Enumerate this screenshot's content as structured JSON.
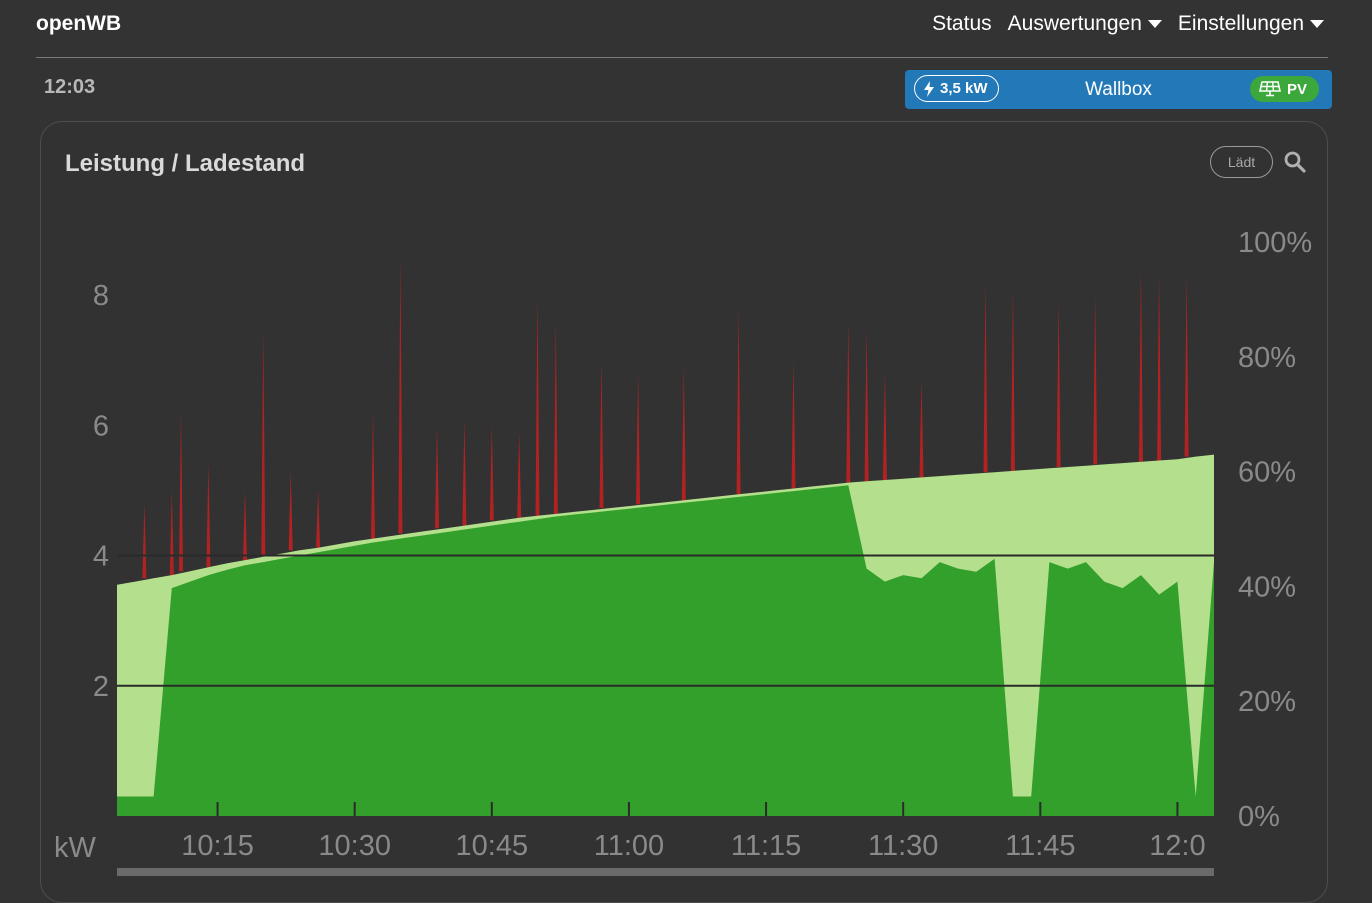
{
  "navbar": {
    "brand": "openWB",
    "items": [
      {
        "label": "Status",
        "dropdown": false
      },
      {
        "label": "Auswertungen",
        "dropdown": true
      },
      {
        "label": "Einstellungen",
        "dropdown": true
      }
    ]
  },
  "clock": "12:03",
  "wallbox": {
    "power": "3,5 kW",
    "label": "Wallbox",
    "mode": "PV",
    "color": "#2378b7",
    "mode_color": "#3ca83c",
    "icons": [
      "bolt-icon",
      "solar-panel-icon"
    ]
  },
  "card": {
    "title": "Leistung / Ladestand",
    "status": "Lädt",
    "zoom_icon": "search-icon"
  },
  "chart_data": {
    "type": "area",
    "unit_label": "kW",
    "x_ticks": [
      "10:15",
      "10:30",
      "10:45",
      "11:00",
      "11:15",
      "11:30",
      "11:45",
      "12:0"
    ],
    "x_range": [
      "10:04",
      "12:04"
    ],
    "y_left": {
      "ticks": [
        "2",
        "4",
        "6",
        "8"
      ],
      "range": [
        0,
        8.8
      ]
    },
    "y_right": {
      "ticks": [
        "0%",
        "20%",
        "40%",
        "60%",
        "80%",
        "100%"
      ],
      "range": [
        0,
        100
      ]
    },
    "guidelines_kw": [
      2,
      4
    ],
    "series": [
      {
        "name": "",
        "color": "#b4df8c",
        "x_minutes": [
          0,
          2,
          4,
          6,
          8,
          10,
          12,
          14,
          16,
          18,
          20,
          22,
          24,
          26,
          28,
          30,
          32,
          34,
          36,
          38,
          40,
          42,
          44,
          46,
          48,
          50,
          52,
          54,
          56,
          58,
          60,
          62,
          64,
          66,
          68,
          70,
          72,
          74,
          76,
          78,
          80,
          82,
          84,
          86,
          88,
          90,
          92,
          94,
          96,
          98,
          100,
          102,
          104,
          106,
          108,
          110,
          112,
          114,
          116,
          118,
          120
        ],
        "values_kw": [
          3.55,
          3.6,
          3.65,
          3.7,
          3.76,
          3.82,
          3.88,
          3.93,
          3.98,
          4.03,
          4.08,
          4.12,
          4.17,
          4.22,
          4.26,
          4.3,
          4.34,
          4.38,
          4.42,
          4.46,
          4.5,
          4.54,
          4.58,
          4.61,
          4.64,
          4.67,
          4.7,
          4.73,
          4.76,
          4.79,
          4.82,
          4.85,
          4.88,
          4.91,
          4.94,
          4.97,
          5.0,
          5.03,
          5.06,
          5.09,
          5.12,
          5.14,
          5.16,
          5.18,
          5.2,
          5.22,
          5.24,
          5.26,
          5.28,
          5.3,
          5.32,
          5.34,
          5.36,
          5.38,
          5.4,
          5.42,
          5.44,
          5.46,
          5.48,
          5.52,
          5.55
        ]
      },
      {
        "name": "",
        "color": "#33a02c",
        "x_minutes": [
          0,
          2,
          4,
          6,
          8,
          10,
          12,
          14,
          16,
          18,
          20,
          22,
          24,
          26,
          28,
          30,
          32,
          34,
          36,
          38,
          40,
          42,
          44,
          46,
          48,
          50,
          52,
          54,
          56,
          58,
          60,
          62,
          64,
          66,
          68,
          70,
          72,
          74,
          76,
          78,
          80,
          82,
          84,
          86,
          88,
          90,
          92,
          94,
          96,
          98,
          100,
          102,
          104,
          106,
          108,
          110,
          112,
          114,
          116,
          118,
          120
        ],
        "values_kw": [
          0.3,
          0.3,
          0.3,
          3.5,
          3.6,
          3.7,
          3.78,
          3.85,
          3.9,
          3.95,
          4.0,
          4.05,
          4.1,
          4.15,
          4.2,
          4.24,
          4.28,
          4.32,
          4.36,
          4.4,
          4.44,
          4.48,
          4.52,
          4.56,
          4.6,
          4.63,
          4.66,
          4.69,
          4.72,
          4.75,
          4.78,
          4.81,
          4.84,
          4.87,
          4.9,
          4.93,
          4.96,
          4.99,
          5.02,
          5.05,
          5.08,
          3.8,
          3.6,
          3.7,
          3.65,
          3.9,
          3.8,
          3.75,
          3.95,
          0.3,
          0.3,
          3.9,
          3.8,
          3.9,
          3.6,
          3.5,
          3.7,
          3.4,
          3.6,
          0.3,
          3.9
        ]
      },
      {
        "name": "",
        "color": "#b22222",
        "spikes_x_minutes": [
          3,
          6,
          7,
          10,
          14,
          16,
          19,
          22,
          28,
          31,
          35,
          38,
          41,
          44,
          46,
          48,
          53,
          57,
          62,
          68,
          74,
          80,
          82,
          84,
          88,
          95,
          98,
          103,
          107,
          112,
          114,
          117
        ],
        "spikes_kw": [
          4.8,
          5.0,
          6.2,
          5.4,
          5.0,
          7.5,
          5.3,
          5.0,
          6.2,
          8.6,
          6.0,
          6.1,
          6.0,
          5.9,
          8.0,
          7.6,
          7.0,
          6.8,
          6.9,
          7.8,
          7.0,
          7.6,
          7.5,
          6.8,
          6.7,
          8.2,
          8.1,
          7.9,
          8.0,
          8.4,
          8.3,
          8.3
        ]
      }
    ]
  }
}
